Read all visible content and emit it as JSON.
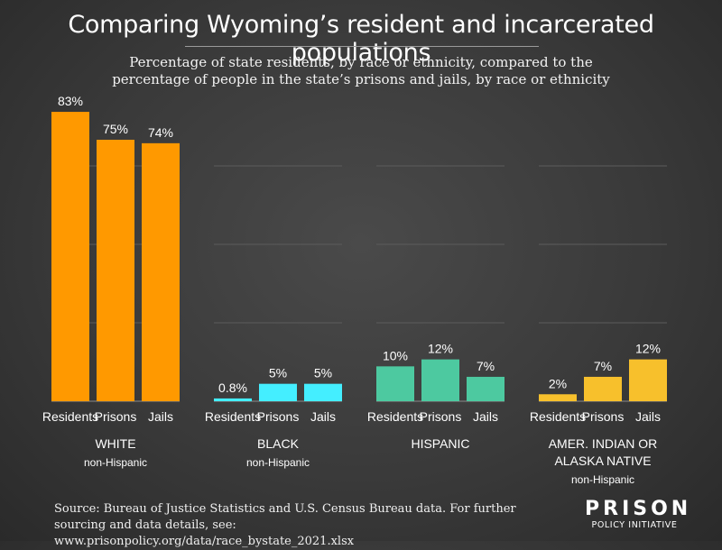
{
  "header": {
    "title": "Comparing Wyoming’s resident and incarcerated populations",
    "subtitle_line1": "Percentage of state residents, by race or ethnicity, compared to the",
    "subtitle_line2": "percentage of people in the state’s prisons and jails, by race or ethnicity"
  },
  "footer": {
    "source_line1": "Source: Bureau of Justice Statistics and U.S. Census Bureau data. For further",
    "source_line2": "sourcing and data details, see: www.prisonpolicy.org/data/race_bystate_2021.xlsx"
  },
  "logo": {
    "line1": "PRISON",
    "line2": "POLICY INITIATIVE"
  },
  "chart_data": {
    "type": "bar",
    "ylim": [
      0,
      90
    ],
    "grid": true,
    "categories": [
      "Residents",
      "Prisons",
      "Jails"
    ],
    "groups": [
      {
        "label_lines": [
          "WHITE"
        ],
        "sublabel": "non-Hispanic",
        "color": "#ff9900",
        "values": [
          83,
          75,
          74
        ],
        "data_labels": [
          "83%",
          "75%",
          "74%"
        ]
      },
      {
        "label_lines": [
          "BLACK"
        ],
        "sublabel": "non-Hispanic",
        "color": "#44eeff",
        "values": [
          0.8,
          5,
          5
        ],
        "data_labels": [
          "0.8%",
          "5%",
          "5%"
        ]
      },
      {
        "label_lines": [
          "HISPANIC"
        ],
        "sublabel": "",
        "color": "#4dc9a0",
        "values": [
          10,
          12,
          7
        ],
        "data_labels": [
          "10%",
          "12%",
          "7%"
        ]
      },
      {
        "label_lines": [
          "AMER. INDIAN OR",
          "ALASKA NATIVE"
        ],
        "sublabel": "non-Hispanic",
        "color": "#f7c02c",
        "values": [
          2,
          7,
          12
        ],
        "data_labels": [
          "2%",
          "7%",
          "12%"
        ]
      }
    ]
  }
}
